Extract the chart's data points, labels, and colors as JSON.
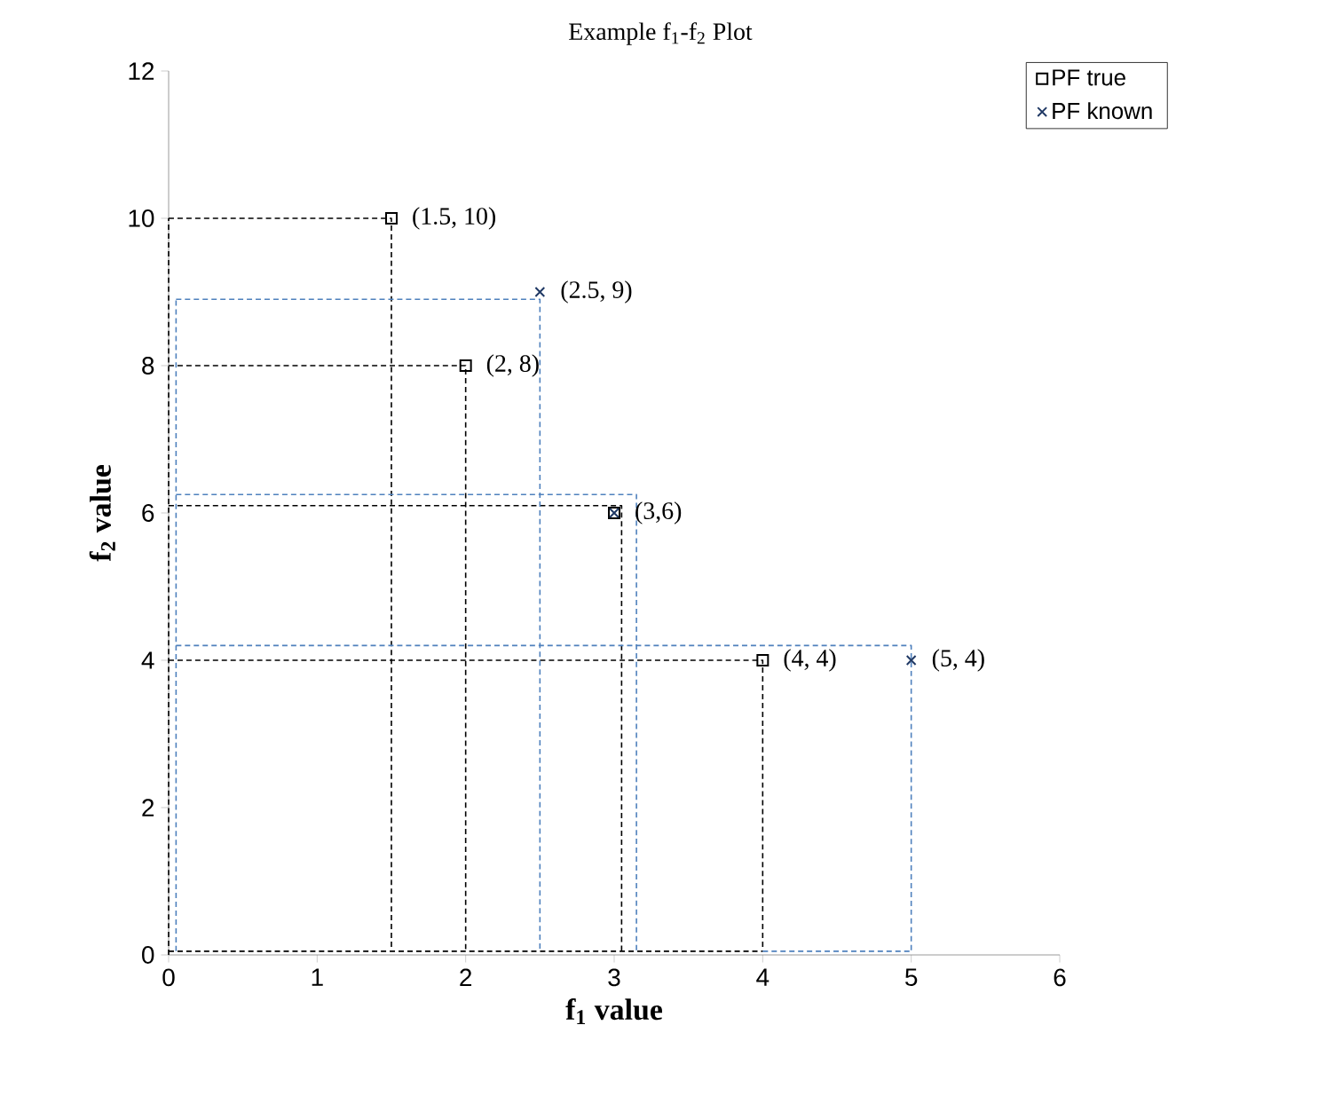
{
  "chart_data": {
    "type": "scatter",
    "title": "Example f$_{1}$-f$_{2}$ Plot",
    "xlabel": "f$_{1}$  value",
    "ylabel": "f$_{2}$ value",
    "xlim": [
      0,
      6
    ],
    "ylim": [
      0,
      12
    ],
    "xticks": [
      0,
      1,
      2,
      3,
      4,
      5,
      6
    ],
    "yticks": [
      0,
      2,
      4,
      6,
      8,
      10,
      12
    ],
    "grid": false,
    "legend": "top right",
    "series": [
      {
        "type": "line",
        "line_style": "dashed",
        "marker": "none",
        "color": "#000000",
        "x": [
          0,
          0
        ],
        "values": [
          0,
          10
        ]
      },
      {
        "type": "line",
        "line_style": "dashed",
        "marker": "none",
        "color": "#000000",
        "x": [
          0,
          4
        ],
        "values": [
          0.05,
          0.05
        ]
      },
      {
        "type": "line",
        "line_style": "dashed",
        "marker": "none",
        "color": "#000000",
        "x": [
          0,
          1.5,
          1.5
        ],
        "values": [
          10,
          10,
          0.05
        ]
      },
      {
        "type": "line",
        "line_style": "dashed",
        "marker": "none",
        "color": "#000000",
        "x": [
          0,
          2,
          2
        ],
        "values": [
          8,
          8,
          0.05
        ]
      },
      {
        "type": "line",
        "line_style": "dashed",
        "marker": "none",
        "color": "#000000",
        "x": [
          0,
          3.05,
          3.05
        ],
        "values": [
          6.1,
          6.1,
          0.05
        ]
      },
      {
        "type": "line",
        "line_style": "dashed",
        "marker": "none",
        "color": "#000000",
        "x": [
          0,
          4,
          4
        ],
        "values": [
          4,
          4,
          0.05
        ]
      },
      {
        "type": "line",
        "line_style": "dashed",
        "marker": "none",
        "color": "#4f81bd",
        "x": [
          0.05,
          0.05
        ],
        "values": [
          0.05,
          8.9
        ]
      },
      {
        "type": "line",
        "line_style": "dashed",
        "marker": "none",
        "color": "#4f81bd",
        "x": [
          4,
          5
        ],
        "values": [
          0.05,
          0.05
        ]
      },
      {
        "type": "line",
        "line_style": "dashed",
        "marker": "none",
        "color": "#4f81bd",
        "x": [
          0.05,
          2.5,
          2.5
        ],
        "values": [
          8.9,
          8.9,
          0.05
        ]
      },
      {
        "type": "line",
        "line_style": "dashed",
        "marker": "none",
        "color": "#4f81bd",
        "x": [
          0.05,
          3.15,
          3.15
        ],
        "values": [
          6.25,
          6.25,
          0.05
        ]
      },
      {
        "type": "line",
        "line_style": "dashed",
        "marker": "none",
        "color": "#4f81bd",
        "x": [
          0.05,
          5,
          5
        ],
        "values": [
          4.2,
          4.2,
          0.05
        ]
      },
      {
        "name": "PF true",
        "marker": "square",
        "color": "#000000",
        "x": [
          1.5,
          2,
          3,
          4
        ],
        "values": [
          10,
          8,
          6,
          4
        ]
      },
      {
        "name": "PF known",
        "marker": "cross",
        "color": "#1f3864",
        "x": [
          2.5,
          3,
          5
        ],
        "values": [
          9,
          6,
          4
        ]
      }
    ],
    "annotations": [
      {
        "text": "(1.5, 10)",
        "x": 1.5,
        "y": 10
      },
      {
        "text": "(2.5, 9)",
        "x": 2.5,
        "y": 9
      },
      {
        "text": "(2, 8)",
        "x": 2,
        "y": 8
      },
      {
        "text": "(3,6)",
        "x": 3,
        "y": 6
      },
      {
        "text": "(4, 4)",
        "x": 4,
        "y": 4
      },
      {
        "text": "(5, 4)",
        "x": 5,
        "y": 4
      }
    ]
  }
}
